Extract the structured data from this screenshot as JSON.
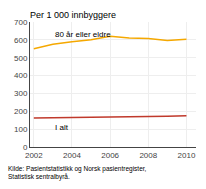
{
  "chart_data": {
    "type": "line",
    "title": "Per 1 000 innbyggere",
    "source": "Kilde: Pasientstatistikk og Norsk pasientregister,\nStatistisk sentralbyrå.",
    "x": [
      2002,
      2003,
      2004,
      2005,
      2006,
      2007,
      2008,
      2009,
      2010
    ],
    "series": [
      {
        "name": "80 år eller eldre",
        "color": "#F5A800",
        "values": [
          550,
          575,
          590,
          600,
          620,
          610,
          607,
          597,
          603
        ]
      },
      {
        "name": "I alt",
        "color": "#C0392B",
        "values": [
          162,
          163,
          165,
          167,
          170,
          170,
          170,
          172,
          175
        ]
      }
    ],
    "xlim": [
      2001.8,
      2010.5
    ],
    "xticks": [
      2002,
      2004,
      2006,
      2008,
      2010
    ],
    "ylim": [
      0,
      700
    ],
    "yticks": [
      0,
      100,
      200,
      300,
      400,
      500,
      600,
      700
    ],
    "grid": true
  }
}
